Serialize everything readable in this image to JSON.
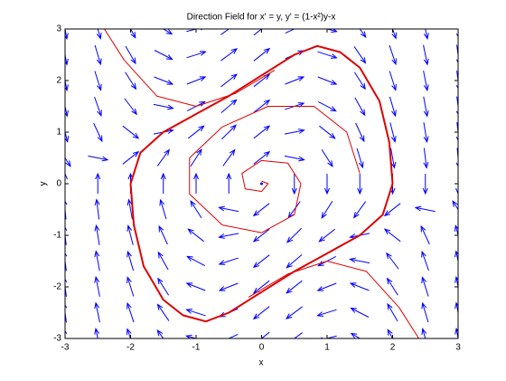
{
  "chart_data": {
    "type": "direction-field",
    "title": "Direction Field for x' = y, y' = (1-x²)y-x",
    "x_label": "x",
    "y_label": "y",
    "xlim": [
      -3,
      3
    ],
    "ylim": [
      -3,
      3
    ],
    "xticks": [
      -3,
      -2,
      -1,
      0,
      1,
      2,
      3
    ],
    "yticks": [
      -3,
      -2,
      -1,
      0,
      1,
      2,
      3
    ],
    "field": {
      "color": "#0000ff",
      "x": [
        -3,
        -2.5,
        -2,
        -1.5,
        -1,
        -0.5,
        0,
        0.5,
        1,
        1.5,
        2,
        2.5,
        3
      ],
      "y": [
        -3,
        -2.5,
        -2,
        -1.5,
        -1,
        -0.5,
        0,
        0.5,
        1,
        1.5,
        2,
        2.5,
        3
      ],
      "u": [
        [
          -3,
          -3,
          -3,
          -3,
          -3,
          -3,
          -3,
          -3,
          -3,
          -3,
          -3,
          -3,
          -3
        ],
        [
          -2.5,
          -2.5,
          -2.5,
          -2.5,
          -2.5,
          -2.5,
          -2.5,
          -2.5,
          -2.5,
          -2.5,
          -2.5,
          -2.5,
          -2.5
        ],
        [
          -2,
          -2,
          -2,
          -2,
          -2,
          -2,
          -2,
          -2,
          -2,
          -2,
          -2,
          -2,
          -2
        ],
        [
          -1.5,
          -1.5,
          -1.5,
          -1.5,
          -1.5,
          -1.5,
          -1.5,
          -1.5,
          -1.5,
          -1.5,
          -1.5,
          -1.5,
          -1.5
        ],
        [
          -1,
          -1,
          -1,
          -1,
          -1,
          -1,
          -1,
          -1,
          -1,
          -1,
          -1,
          -1,
          -1
        ],
        [
          -0.5,
          -0.5,
          -0.5,
          -0.5,
          -0.5,
          -0.5,
          -0.5,
          -0.5,
          -0.5,
          -0.5,
          -0.5,
          -0.5,
          -0.5
        ],
        [
          0,
          0,
          0,
          0,
          0,
          0,
          0,
          0,
          0,
          0,
          0,
          0,
          0
        ],
        [
          0.5,
          0.5,
          0.5,
          0.5,
          0.5,
          0.5,
          0.5,
          0.5,
          0.5,
          0.5,
          0.5,
          0.5,
          0.5
        ],
        [
          1,
          1,
          1,
          1,
          1,
          1,
          1,
          1,
          1,
          1,
          1,
          1,
          1
        ],
        [
          1.5,
          1.5,
          1.5,
          1.5,
          1.5,
          1.5,
          1.5,
          1.5,
          1.5,
          1.5,
          1.5,
          1.5,
          1.5
        ],
        [
          2,
          2,
          2,
          2,
          2,
          2,
          2,
          2,
          2,
          2,
          2,
          2,
          2
        ],
        [
          2.5,
          2.5,
          2.5,
          2.5,
          2.5,
          2.5,
          2.5,
          2.5,
          2.5,
          2.5,
          2.5,
          2.5,
          2.5
        ],
        [
          3,
          3,
          3,
          3,
          3,
          3,
          3,
          3,
          3,
          3,
          3,
          3,
          3
        ]
      ],
      "v": [
        [
          27,
          18.25,
          11,
          5.25,
          1,
          -1.75,
          -3,
          -2.75,
          -1,
          2.25,
          7,
          13.25,
          21
        ],
        [
          23,
          15.625,
          9.5,
          4.625,
          1,
          -1.375,
          -2.5,
          -2.375,
          -1,
          1.625,
          5.5,
          10.625,
          17
        ],
        [
          19,
          13,
          8,
          4,
          1,
          -1,
          -2,
          -2,
          -1,
          1,
          4,
          8,
          13
        ],
        [
          15,
          10.375,
          6.5,
          3.375,
          1,
          -0.625,
          -1.5,
          -1.625,
          -1,
          0.375,
          2.5,
          5.375,
          9
        ],
        [
          11,
          7.75,
          5,
          2.75,
          1,
          -0.25,
          -1,
          -1.25,
          -1,
          -0.25,
          1,
          2.75,
          5
        ],
        [
          7,
          5.125,
          3.5,
          2.125,
          1,
          0.125,
          -0.5,
          -0.875,
          -1,
          -0.875,
          -0.5,
          0.125,
          1
        ],
        [
          3,
          2.5,
          2,
          1.5,
          1,
          0.5,
          0,
          -0.5,
          -1,
          -1.5,
          -2,
          -2.5,
          -3
        ],
        [
          -1,
          -0.125,
          0.5,
          0.875,
          1,
          0.875,
          0.5,
          -0.125,
          -1,
          -2.125,
          -3.5,
          -5.125,
          -7
        ],
        [
          -5,
          -2.75,
          -1,
          0.25,
          1,
          1.25,
          1,
          0.25,
          -1,
          -2.75,
          -5,
          -7.75,
          -11
        ],
        [
          -9,
          -5.375,
          -2.5,
          -0.375,
          1,
          1.625,
          1.5,
          0.625,
          -1,
          -3.375,
          -6.5,
          -10.375,
          -15
        ],
        [
          -13,
          -8,
          -4,
          -1,
          1,
          2,
          2,
          1,
          -1,
          -4,
          -8,
          -13,
          -19
        ],
        [
          -17,
          -10.625,
          -5.5,
          -1.625,
          1,
          2.375,
          2.5,
          1.375,
          -1,
          -4.625,
          -9.5,
          -15.625,
          -23
        ],
        [
          -21,
          -13.25,
          -7,
          -2.25,
          1,
          2.75,
          3,
          1.75,
          -1,
          -5.25,
          -11,
          -18.25,
          -27
        ]
      ]
    },
    "series": [
      {
        "color": "#dd0000",
        "line_width": 2,
        "x": [
          -2.0,
          -1.85,
          -1.5,
          -1.0,
          -0.5,
          0,
          0.5,
          0.85,
          1.2,
          1.5,
          1.8,
          1.95,
          2.0,
          1.85,
          1.5,
          1.0,
          0.5,
          0,
          -0.5,
          -0.85,
          -1.2,
          -1.5,
          -1.8,
          -1.95,
          -2.0
        ],
        "y": [
          0,
          0.6,
          1.0,
          1.35,
          1.7,
          2.1,
          2.5,
          2.67,
          2.55,
          2.25,
          1.6,
          0.8,
          0,
          -0.6,
          -1.0,
          -1.35,
          -1.7,
          -2.1,
          -2.5,
          -2.67,
          -2.55,
          -2.25,
          -1.6,
          -0.8,
          0
        ]
      },
      {
        "color": "#dd0000",
        "line_width": 1,
        "x": [
          0,
          0.1,
          0,
          -0.25,
          -0.3,
          0,
          0.4,
          0.6,
          0.5,
          0,
          -0.6,
          -1.1,
          -1.1,
          -0.6,
          0.1,
          0.8,
          1.3,
          1.5
        ],
        "y": [
          0.05,
          0,
          -0.15,
          -0.1,
          0.2,
          0.45,
          0.4,
          0,
          -0.6,
          -0.95,
          -0.8,
          -0.2,
          0.5,
          1.1,
          1.5,
          1.5,
          1.0,
          0.2
        ]
      },
      {
        "color": "#dd0000",
        "line_width": 1,
        "x": [
          -2.4,
          -2.1,
          -1.6,
          -1.0,
          -0.4,
          0.2
        ],
        "y": [
          3,
          2.4,
          1.7,
          1.5,
          1.75,
          2.2
        ]
      },
      {
        "color": "#dd0000",
        "line_width": 1,
        "x": [
          2.4,
          2.1,
          1.6,
          1.0,
          0.4,
          -0.2
        ],
        "y": [
          -3,
          -2.4,
          -1.7,
          -1.5,
          -1.75,
          -2.2
        ]
      }
    ]
  }
}
